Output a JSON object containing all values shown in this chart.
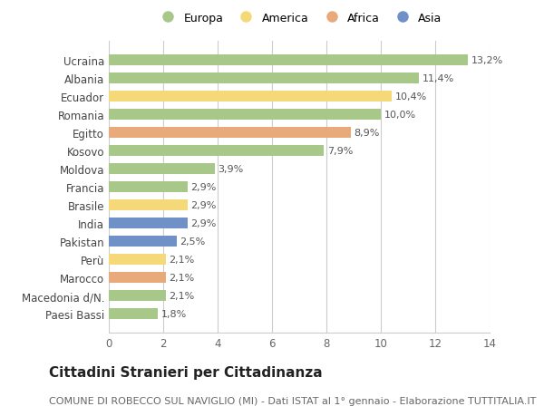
{
  "countries": [
    "Ucraina",
    "Albania",
    "Ecuador",
    "Romania",
    "Egitto",
    "Kosovo",
    "Moldova",
    "Francia",
    "Brasile",
    "India",
    "Pakistan",
    "Perù",
    "Marocco",
    "Macedonia d/N.",
    "Paesi Bassi"
  ],
  "values": [
    13.2,
    11.4,
    10.4,
    10.0,
    8.9,
    7.9,
    3.9,
    2.9,
    2.9,
    2.9,
    2.5,
    2.1,
    2.1,
    2.1,
    1.8
  ],
  "continents": [
    "Europa",
    "Europa",
    "America",
    "Europa",
    "Africa",
    "Europa",
    "Europa",
    "Europa",
    "America",
    "Asia",
    "Asia",
    "America",
    "Africa",
    "Europa",
    "Europa"
  ],
  "colors": {
    "Europa": "#a8c88a",
    "America": "#f5d878",
    "Africa": "#e8aa7a",
    "Asia": "#7090c8"
  },
  "legend_order": [
    "Europa",
    "America",
    "Africa",
    "Asia"
  ],
  "xlim": [
    0,
    14
  ],
  "xticks": [
    0,
    2,
    4,
    6,
    8,
    10,
    12,
    14
  ],
  "title": "Cittadini Stranieri per Cittadinanza",
  "subtitle": "COMUNE DI ROBECCO SUL NAVIGLIO (MI) - Dati ISTAT al 1° gennaio - Elaborazione TUTTITALIA.IT",
  "title_fontsize": 11,
  "subtitle_fontsize": 8,
  "background_color": "#ffffff",
  "plot_background": "#ffffff",
  "bar_height": 0.6,
  "label_fontsize": 8,
  "ytick_fontsize": 8.5,
  "xtick_fontsize": 8.5
}
